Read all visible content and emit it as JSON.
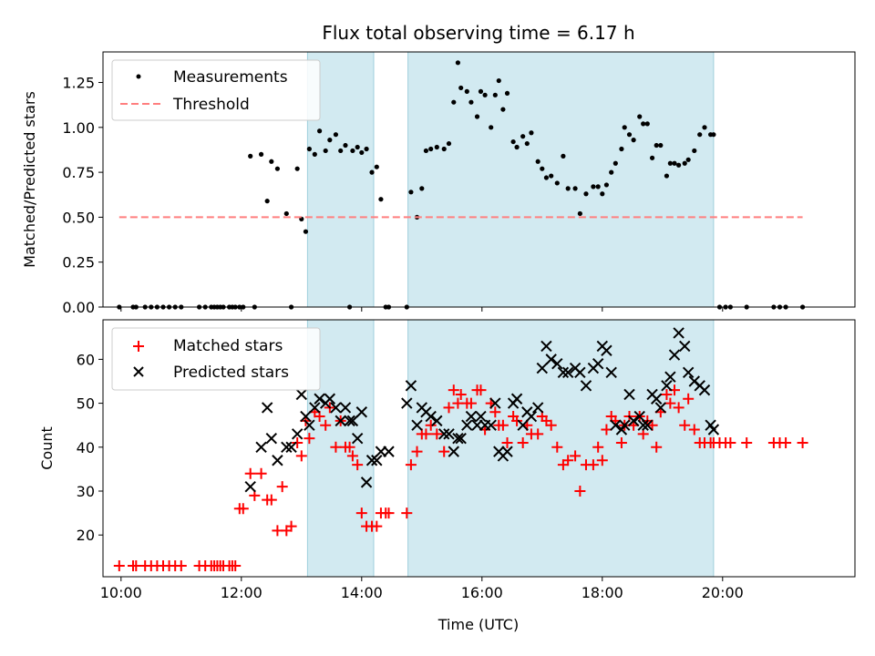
{
  "chart_data": [
    {
      "type": "scatter",
      "title": "Flux total observing time = 6.17 h",
      "ylabel": "Matched/Predicted stars",
      "xlabel": "",
      "xlim": [
        9.7,
        22.2
      ],
      "ylim": [
        0,
        1.42
      ],
      "yticks": [
        0.0,
        0.25,
        0.5,
        0.75,
        1.0,
        1.25
      ],
      "ytick_labels": [
        "0.00",
        "0.25",
        "0.50",
        "0.75",
        "1.00",
        "1.25"
      ],
      "xticks": [
        10,
        12,
        14,
        16,
        18,
        20
      ],
      "shaded_intervals": [
        [
          13.1,
          14.2
        ],
        [
          14.77,
          19.85
        ]
      ],
      "legend": {
        "location": "upper-left",
        "entries": [
          "Measurements",
          "Threshold"
        ]
      },
      "series": [
        {
          "name": "Measurements",
          "color": "#000000",
          "marker": "dot",
          "x": [
            9.97,
            10.2,
            10.25,
            10.4,
            10.5,
            10.6,
            10.7,
            10.8,
            10.9,
            11.0,
            11.3,
            11.4,
            11.5,
            11.55,
            11.6,
            11.65,
            11.7,
            11.8,
            11.85,
            11.9,
            11.97,
            12.03,
            12.15,
            12.22,
            12.33,
            12.43,
            12.5,
            12.6,
            12.75,
            12.83,
            12.93,
            13.0,
            13.07,
            13.13,
            13.22,
            13.3,
            13.4,
            13.47,
            13.57,
            13.65,
            13.73,
            13.8,
            13.85,
            13.93,
            14.0,
            14.08,
            14.17,
            14.25,
            14.32,
            14.4,
            14.45,
            14.75,
            14.82,
            14.92,
            15.0,
            15.07,
            15.15,
            15.25,
            15.37,
            15.45,
            15.53,
            15.6,
            15.65,
            15.75,
            15.82,
            15.92,
            15.98,
            16.05,
            16.15,
            16.22,
            16.28,
            16.35,
            16.42,
            16.52,
            16.58,
            16.68,
            16.75,
            16.82,
            16.93,
            17.0,
            17.07,
            17.15,
            17.25,
            17.35,
            17.43,
            17.55,
            17.63,
            17.73,
            17.85,
            17.93,
            18.0,
            18.07,
            18.15,
            18.22,
            18.32,
            18.37,
            18.45,
            18.52,
            18.62,
            18.68,
            18.75,
            18.83,
            18.9,
            18.97,
            19.07,
            19.13,
            19.2,
            19.27,
            19.37,
            19.43,
            19.53,
            19.62,
            19.7,
            19.8,
            19.85,
            19.95,
            20.05,
            20.13,
            20.4,
            20.85,
            20.95,
            21.05,
            21.33
          ],
          "y": [
            0.0,
            0.0,
            0.0,
            0.0,
            0.0,
            0.0,
            0.0,
            0.0,
            0.0,
            0.0,
            0.0,
            0.0,
            0.0,
            0.0,
            0.0,
            0.0,
            0.0,
            0.0,
            0.0,
            0.0,
            0.0,
            0.0,
            0.84,
            0.0,
            0.85,
            0.59,
            0.81,
            0.77,
            0.52,
            0.0,
            0.77,
            0.49,
            0.42,
            0.88,
            0.85,
            0.98,
            0.87,
            0.93,
            0.96,
            0.87,
            0.9,
            0.0,
            0.87,
            0.89,
            0.86,
            0.88,
            0.75,
            0.78,
            0.6,
            0.0,
            0.0,
            0.0,
            0.64,
            0.5,
            0.66,
            0.87,
            0.88,
            0.89,
            0.88,
            0.91,
            1.14,
            1.36,
            1.22,
            1.2,
            1.14,
            1.06,
            1.2,
            1.18,
            1.0,
            1.18,
            1.26,
            1.1,
            1.19,
            0.92,
            0.89,
            0.95,
            0.91,
            0.97,
            0.81,
            0.77,
            0.72,
            0.73,
            0.69,
            0.84,
            0.66,
            0.66,
            0.52,
            0.63,
            0.67,
            0.67,
            0.63,
            0.68,
            0.75,
            0.8,
            0.88,
            1.0,
            0.96,
            0.93,
            1.06,
            1.02,
            1.02,
            0.83,
            0.9,
            0.9,
            0.73,
            0.8,
            0.8,
            0.79,
            0.8,
            0.82,
            0.87,
            0.96,
            1.0,
            0.96,
            0.96,
            0.0,
            0.0,
            0.0,
            0.0,
            0.0,
            0.0,
            0.0,
            0.0
          ]
        },
        {
          "name": "Threshold",
          "color": "#ff7f7f",
          "style": "dashed",
          "x": [
            9.97,
            21.33
          ],
          "y": [
            0.5,
            0.5
          ]
        }
      ]
    },
    {
      "type": "scatter",
      "title": "",
      "ylabel": "Count",
      "xlabel": "Time (UTC)",
      "xlim": [
        9.7,
        22.2
      ],
      "ylim": [
        10.5,
        69
      ],
      "yticks": [
        20,
        30,
        40,
        50,
        60
      ],
      "ytick_labels": [
        "20",
        "30",
        "40",
        "50",
        "60"
      ],
      "xticks": [
        10,
        12,
        14,
        16,
        18,
        20
      ],
      "xtick_labels": [
        "10:00",
        "12:00",
        "14:00",
        "16:00",
        "18:00",
        "20:00"
      ],
      "shaded_intervals": [
        [
          13.1,
          14.2
        ],
        [
          14.77,
          19.85
        ]
      ],
      "legend": {
        "location": "upper-left",
        "entries": [
          "Matched stars",
          "Predicted stars"
        ]
      },
      "series": [
        {
          "name": "Matched stars",
          "color": "#ff0000",
          "marker": "plus",
          "x": [
            9.97,
            10.2,
            10.25,
            10.4,
            10.5,
            10.6,
            10.7,
            10.8,
            10.9,
            11.0,
            11.3,
            11.4,
            11.5,
            11.55,
            11.6,
            11.65,
            11.7,
            11.8,
            11.85,
            11.9,
            11.97,
            12.03,
            12.15,
            12.22,
            12.33,
            12.43,
            12.5,
            12.6,
            12.68,
            12.75,
            12.83,
            12.93,
            13.0,
            13.07,
            13.13,
            13.22,
            13.3,
            13.4,
            13.47,
            13.57,
            13.65,
            13.73,
            13.8,
            13.85,
            13.93,
            14.0,
            14.08,
            14.17,
            14.25,
            14.32,
            14.4,
            14.45,
            14.75,
            14.82,
            14.92,
            15.0,
            15.07,
            15.15,
            15.25,
            15.37,
            15.45,
            15.53,
            15.6,
            15.65,
            15.75,
            15.82,
            15.92,
            15.98,
            16.05,
            16.15,
            16.22,
            16.28,
            16.35,
            16.42,
            16.52,
            16.58,
            16.68,
            16.75,
            16.82,
            16.93,
            17.0,
            17.07,
            17.15,
            17.25,
            17.35,
            17.43,
            17.55,
            17.63,
            17.73,
            17.85,
            17.93,
            18.0,
            18.07,
            18.15,
            18.22,
            18.32,
            18.37,
            18.45,
            18.52,
            18.62,
            18.68,
            18.75,
            18.83,
            18.9,
            18.97,
            19.07,
            19.13,
            19.2,
            19.27,
            19.37,
            19.43,
            19.53,
            19.62,
            19.7,
            19.8,
            19.85,
            19.95,
            20.05,
            20.13,
            20.4,
            20.85,
            20.95,
            21.05,
            21.33
          ],
          "y": [
            13,
            13,
            13,
            13,
            13,
            13,
            13,
            13,
            13,
            13,
            13,
            13,
            13,
            13,
            13,
            13,
            13,
            13,
            13,
            13,
            26,
            26,
            34,
            29,
            34,
            28,
            28,
            21,
            31,
            21,
            22,
            41,
            38,
            46,
            42,
            48,
            47,
            45,
            49,
            40,
            46,
            40,
            40,
            38,
            36,
            25,
            22,
            22,
            22,
            25,
            25,
            25,
            25,
            36,
            39,
            43,
            43,
            45,
            43,
            39,
            49,
            53,
            50,
            52,
            50,
            50,
            53,
            53,
            44,
            50,
            48,
            45,
            45,
            41,
            47,
            46,
            41,
            45,
            43,
            43,
            47,
            46,
            45,
            40,
            36,
            37,
            38,
            30,
            36,
            36,
            40,
            37,
            44,
            47,
            46,
            41,
            45,
            47,
            45,
            47,
            43,
            46,
            45,
            40,
            48,
            52,
            50,
            53,
            49,
            45,
            51,
            44,
            41,
            41,
            41,
            41,
            41,
            41,
            41,
            41,
            41,
            41,
            41,
            41
          ],
          "_note": "first x points used for red plus markers"
        },
        {
          "name": "Predicted stars",
          "color": "#000000",
          "marker": "x",
          "x": [
            12.15,
            12.33,
            12.43,
            12.5,
            12.6,
            12.75,
            12.83,
            12.93,
            13.0,
            13.07,
            13.13,
            13.22,
            13.3,
            13.4,
            13.47,
            13.57,
            13.65,
            13.73,
            13.8,
            13.85,
            13.93,
            14.0,
            14.08,
            14.17,
            14.25,
            14.32,
            14.45,
            14.75,
            14.82,
            14.92,
            15.0,
            15.07,
            15.15,
            15.25,
            15.37,
            15.45,
            15.53,
            15.6,
            15.65,
            15.75,
            15.82,
            15.92,
            15.98,
            16.05,
            16.15,
            16.22,
            16.28,
            16.35,
            16.42,
            16.52,
            16.58,
            16.68,
            16.75,
            16.82,
            16.93,
            17.0,
            17.07,
            17.15,
            17.25,
            17.35,
            17.43,
            17.55,
            17.63,
            17.73,
            17.85,
            17.93,
            18.0,
            18.07,
            18.15,
            18.22,
            18.32,
            18.37,
            18.45,
            18.52,
            18.62,
            18.68,
            18.75,
            18.83,
            18.9,
            18.97,
            19.07,
            19.13,
            19.2,
            19.27,
            19.37,
            19.43,
            19.53,
            19.62,
            19.7,
            19.8,
            19.85
          ],
          "y": [
            31,
            40,
            49,
            42,
            37,
            40,
            40,
            43,
            52,
            47,
            45,
            49,
            51,
            50,
            51,
            49,
            46,
            49,
            46,
            46,
            42,
            48,
            32,
            37,
            37,
            39,
            39,
            50,
            54,
            45,
            49,
            48,
            47,
            46,
            43,
            43,
            39,
            42,
            42,
            45,
            47,
            45,
            47,
            45,
            45,
            50,
            39,
            38,
            39,
            50,
            51,
            45,
            48,
            47,
            49,
            58,
            63,
            60,
            59,
            57,
            57,
            58,
            57,
            54,
            58,
            59,
            63,
            62,
            57,
            45,
            44,
            45,
            52,
            46,
            47,
            45,
            45,
            52,
            51,
            49,
            54,
            56,
            61,
            66,
            63,
            57,
            55,
            54,
            53,
            45,
            44
          ]
        }
      ]
    }
  ]
}
